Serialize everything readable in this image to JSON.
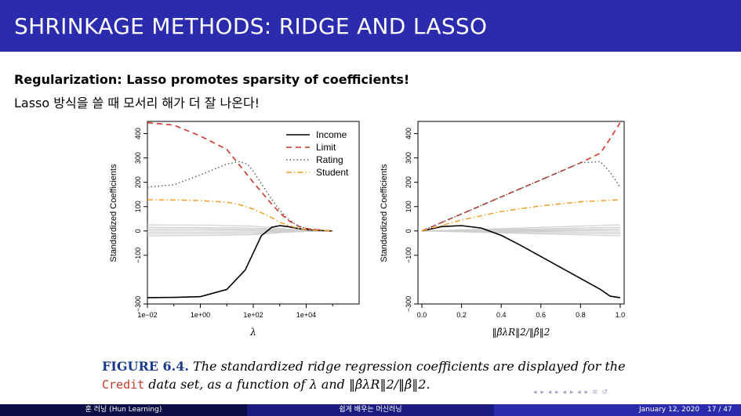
{
  "slide": {
    "title": "SHRINKAGE METHODS: RIDGE AND LASSO",
    "heading": "Regularization: Lasso promotes sparsity of coefficients!",
    "subline": "Lasso 방식을 쓸 때 모서리 해가 더 잘 나온다!"
  },
  "caption": {
    "figure_label": "FIGURE 6.4.",
    "text1": "The standardized ridge regression coefficients are displayed for the",
    "dataset": "Credit",
    "text2": "data set, as a function of",
    "lambda": "λ",
    "and": "and",
    "norm_ratio": "‖β̂λR‖2/‖β̂‖2."
  },
  "footer": {
    "left": "훈 러닝 (Hun Learning)",
    "center": "쉽게 배우는 머신러닝",
    "date": "January 12, 2020",
    "page": "17 / 47"
  },
  "nav_symbols": "◂ ▸ ◂ ▸ ◂ ▸ ◂ ▸  ≡  ↺",
  "chart_data": [
    {
      "type": "line",
      "xlabel": "λ",
      "ylabel": "Standardized Coefficients",
      "x_scale": "log",
      "xlim": [
        0.01,
        1000000
      ],
      "ylim": [
        -300,
        450
      ],
      "x_ticks": [
        "1e−02",
        "1e+00",
        "1e+02",
        "1e+04"
      ],
      "x_tick_values": [
        0.01,
        1,
        100,
        10000
      ],
      "y_ticks": [
        "−300",
        "−100",
        "0",
        "100",
        "200",
        "300",
        "400"
      ],
      "y_tick_values": [
        -300,
        -100,
        0,
        100,
        200,
        300,
        400
      ],
      "legend_position": "top-right",
      "legend": [
        "Income",
        "Limit",
        "Rating",
        "Student"
      ],
      "colors": {
        "Income": "#000000",
        "Limit": "#d3362a",
        "Rating": "#555555",
        "Student": "#f29b1e",
        "other": "#cfcfcf"
      },
      "series": [
        {
          "name": "Income",
          "x": [
            0.01,
            0.1,
            1,
            10,
            50,
            100,
            200,
            500,
            1000,
            2000,
            5000,
            10000,
            50000,
            100000
          ],
          "values": [
            -274,
            -273,
            -270,
            -240,
            -160,
            -90,
            -20,
            15,
            22,
            18,
            10,
            5,
            1,
            0
          ]
        },
        {
          "name": "Limit",
          "x": [
            0.01,
            0.1,
            1,
            10,
            100,
            500,
            1000,
            2000,
            5000,
            10000,
            50000,
            100000
          ],
          "values": [
            445,
            435,
            390,
            335,
            200,
            110,
            75,
            45,
            20,
            10,
            2,
            0
          ]
        },
        {
          "name": "Rating",
          "x": [
            0.01,
            0.1,
            1,
            10,
            30,
            60,
            100,
            500,
            1000,
            2000,
            5000,
            10000,
            50000,
            100000
          ],
          "values": [
            180,
            190,
            230,
            275,
            285,
            275,
            245,
            130,
            85,
            50,
            20,
            10,
            2,
            0
          ]
        },
        {
          "name": "Student",
          "x": [
            0.01,
            0.1,
            1,
            10,
            30,
            100,
            500,
            1000,
            5000,
            10000,
            100000
          ],
          "values": [
            128,
            127,
            125,
            118,
            108,
            90,
            55,
            35,
            10,
            5,
            0
          ]
        }
      ],
      "other_series": [
        {
          "x": [
            0.01,
            1,
            100,
            1000,
            10000,
            100000
          ],
          "values": [
            25,
            24,
            20,
            10,
            3,
            0
          ]
        },
        {
          "x": [
            0.01,
            1,
            100,
            1000,
            10000,
            100000
          ],
          "values": [
            15,
            14,
            12,
            6,
            2,
            0
          ]
        },
        {
          "x": [
            0.01,
            1,
            100,
            1000,
            10000,
            100000
          ],
          "values": [
            8,
            8,
            6,
            3,
            1,
            0
          ]
        },
        {
          "x": [
            0.01,
            1,
            100,
            1000,
            10000,
            100000
          ],
          "values": [
            2,
            2,
            2,
            1,
            0,
            0
          ]
        },
        {
          "x": [
            0.01,
            1,
            100,
            1000,
            10000,
            100000
          ],
          "values": [
            -5,
            -5,
            -4,
            -2,
            -1,
            0
          ]
        },
        {
          "x": [
            0.01,
            1,
            100,
            1000,
            10000,
            100000
          ],
          "values": [
            -12,
            -12,
            -10,
            -5,
            -2,
            0
          ]
        },
        {
          "x": [
            0.01,
            1,
            100,
            1000,
            10000,
            100000
          ],
          "values": [
            -20,
            -19,
            -15,
            -7,
            -2,
            0
          ]
        }
      ]
    },
    {
      "type": "line",
      "xlabel": "‖β̂λR‖2/‖β̂‖2",
      "ylabel": "Standardized Coefficients",
      "xlim": [
        -0.02,
        1.02
      ],
      "ylim": [
        -300,
        450
      ],
      "x_ticks": [
        "0.0",
        "0.2",
        "0.4",
        "0.6",
        "0.8",
        "1.0"
      ],
      "x_tick_values": [
        0,
        0.2,
        0.4,
        0.6,
        0.8,
        1.0
      ],
      "y_ticks": [
        "−300",
        "−100",
        "0",
        "100",
        "200",
        "300",
        "400"
      ],
      "y_tick_values": [
        -300,
        -100,
        0,
        100,
        200,
        300,
        400
      ],
      "series": [
        {
          "name": "Income",
          "x": [
            0,
            0.1,
            0.2,
            0.3,
            0.4,
            0.5,
            0.6,
            0.7,
            0.8,
            0.9,
            0.95,
            1.0
          ],
          "values": [
            0,
            18,
            22,
            12,
            -18,
            -60,
            -105,
            -150,
            -195,
            -240,
            -268,
            -274
          ]
        },
        {
          "name": "Limit",
          "x": [
            0,
            0.2,
            0.4,
            0.6,
            0.8,
            0.9,
            0.95,
            1.0
          ],
          "values": [
            0,
            70,
            140,
            210,
            280,
            320,
            380,
            445
          ]
        },
        {
          "name": "Rating",
          "x": [
            0,
            0.2,
            0.4,
            0.6,
            0.8,
            0.9,
            0.95,
            1.0
          ],
          "values": [
            0,
            70,
            140,
            210,
            280,
            285,
            240,
            180
          ]
        },
        {
          "name": "Student",
          "x": [
            0,
            0.2,
            0.4,
            0.6,
            0.8,
            1.0
          ],
          "values": [
            0,
            45,
            80,
            103,
            120,
            128
          ]
        }
      ],
      "other_series": [
        {
          "x": [
            0,
            0.5,
            1.0
          ],
          "values": [
            0,
            12,
            25
          ]
        },
        {
          "x": [
            0,
            0.5,
            1.0
          ],
          "values": [
            0,
            7,
            15
          ]
        },
        {
          "x": [
            0,
            0.5,
            1.0
          ],
          "values": [
            0,
            4,
            8
          ]
        },
        {
          "x": [
            0,
            0.5,
            1.0
          ],
          "values": [
            0,
            1,
            2
          ]
        },
        {
          "x": [
            0,
            0.5,
            1.0
          ],
          "values": [
            0,
            -2,
            -5
          ]
        },
        {
          "x": [
            0,
            0.5,
            1.0
          ],
          "values": [
            0,
            -6,
            -12
          ]
        },
        {
          "x": [
            0,
            0.5,
            1.0
          ],
          "values": [
            0,
            -10,
            -20
          ]
        }
      ]
    }
  ]
}
